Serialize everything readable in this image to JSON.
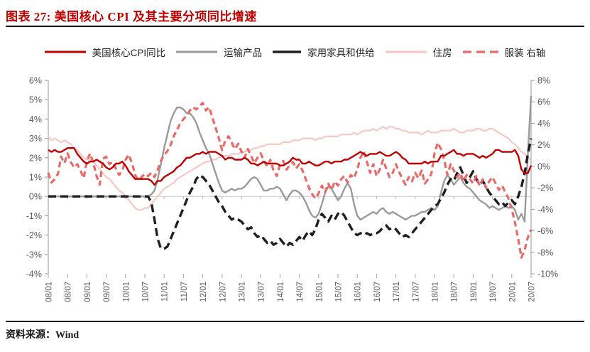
{
  "title": "图表 27:  美国核心 CPI 及其主要分项同比增速",
  "source": "资料来源：Wind",
  "legend": {
    "items": [
      {
        "label": "美国核心CPI同比"
      },
      {
        "label": "运输产品"
      },
      {
        "label": "家用家具和供给"
      },
      {
        "label": "住房"
      },
      {
        "label": "服装 右轴"
      }
    ]
  },
  "chart_data": {
    "type": "line",
    "title": "美国核心 CPI 及其主要分项同比增速",
    "x_labels": [
      "08/01",
      "08/07",
      "09/01",
      "09/07",
      "10/01",
      "10/07",
      "11/01",
      "11/07",
      "12/01",
      "12/07",
      "13/01",
      "13/07",
      "14/01",
      "14/07",
      "15/01",
      "15/07",
      "16/01",
      "16/07",
      "17/01",
      "17/07",
      "18/01",
      "18/07",
      "19/01",
      "19/07",
      "20/01",
      "20/07"
    ],
    "x_start": "2008-01",
    "x_end": "2020-07",
    "x_frequency": "monthly",
    "grid": "zero-line-only",
    "legend_position": "top",
    "left_axis": {
      "max": 6,
      "min": -4,
      "step": 1,
      "labels": [
        "6%",
        "5%",
        "4%",
        "3%",
        "2%",
        "1%",
        "0%",
        "-1%",
        "-2%",
        "-3%",
        "-4%"
      ]
    },
    "right_axis": {
      "max": 8,
      "min": -10,
      "step": 2,
      "labels": [
        "8%",
        "6%",
        "4%",
        "2%",
        "0%",
        "-2%",
        "-4%",
        "-6%",
        "-8%",
        "-10%"
      ]
    },
    "series": [
      {
        "name": "美国核心CPI同比",
        "axis": "left",
        "color": "#c00000",
        "style": "solid",
        "width": 2.4,
        "sample_width": 58,
        "values": [
          2.4,
          2.3,
          2.4,
          2.3,
          2.3,
          2.4,
          2.5,
          2.5,
          2.5,
          2.2,
          2.0,
          1.8,
          1.7,
          1.8,
          1.8,
          1.9,
          1.8,
          1.7,
          1.5,
          1.4,
          1.5,
          1.7,
          1.7,
          1.8,
          1.6,
          1.3,
          1.1,
          0.9,
          0.9,
          0.9,
          0.9,
          0.9,
          0.8,
          0.6,
          0.8,
          0.8,
          1.0,
          1.1,
          1.2,
          1.3,
          1.5,
          1.6,
          1.8,
          2.0,
          2.0,
          2.1,
          2.2,
          2.2,
          2.3,
          2.2,
          2.3,
          2.3,
          2.3,
          2.2,
          2.1,
          1.9,
          2.0,
          2.0,
          1.9,
          1.9,
          1.9,
          2.0,
          1.9,
          1.7,
          1.7,
          1.6,
          1.7,
          1.8,
          1.7,
          1.7,
          1.7,
          1.7,
          1.6,
          1.6,
          1.7,
          1.8,
          2.0,
          1.9,
          1.9,
          1.7,
          1.7,
          1.8,
          1.7,
          1.6,
          1.6,
          1.7,
          1.8,
          1.8,
          1.7,
          1.8,
          1.8,
          1.8,
          1.9,
          1.9,
          2.0,
          2.1,
          2.2,
          2.3,
          2.2,
          2.1,
          2.2,
          2.2,
          2.2,
          2.3,
          2.2,
          2.1,
          2.1,
          2.2,
          2.3,
          2.2,
          2.0,
          1.9,
          1.7,
          1.7,
          1.7,
          1.7,
          1.7,
          1.8,
          1.7,
          1.8,
          1.8,
          1.8,
          2.1,
          2.1,
          2.2,
          2.3,
          2.4,
          2.2,
          2.2,
          2.1,
          2.2,
          2.2,
          2.2,
          2.1,
          2.0,
          2.1,
          2.0,
          2.1,
          2.2,
          2.4,
          2.4,
          2.3,
          2.3,
          2.3,
          2.3,
          2.4,
          2.1,
          1.4,
          1.2,
          1.2,
          1.6
        ]
      },
      {
        "name": "运输产品",
        "axis": "left",
        "color": "#9a9a9a",
        "style": "solid",
        "width": 2.4,
        "sample_width": 58,
        "values": [
          0,
          0,
          0,
          0,
          0,
          0,
          0,
          0,
          0,
          0,
          0,
          0,
          0,
          0,
          0,
          0,
          0,
          0,
          0,
          0,
          0,
          0,
          0,
          0,
          0,
          0,
          0,
          0,
          0,
          0,
          0,
          0,
          0.1,
          0.3,
          0.9,
          1.7,
          2.5,
          3.2,
          3.9,
          4.3,
          4.6,
          4.6,
          4.5,
          4.3,
          4.3,
          4.1,
          3.8,
          3.3,
          2.9,
          2.5,
          2.2,
          1.7,
          1.2,
          0.7,
          0.3,
          0.2,
          0.3,
          0.4,
          0.3,
          0.4,
          0.4,
          0.5,
          0.7,
          0.9,
          1.0,
          0.9,
          0.6,
          0.3,
          0.3,
          0.4,
          0.4,
          0.5,
          0.4,
          0.1,
          -0.2,
          0.1,
          0.3,
          0.3,
          0.2,
          0.0,
          -0.3,
          -0.7,
          -1.0,
          -1.1,
          -0.9,
          -0.4,
          0.2,
          0.5,
          0.4,
          0.1,
          -0.2,
          0.0,
          0.4,
          0.7,
          0.4,
          -0.4,
          -1.0,
          -1.2,
          -1.1,
          -1.0,
          -0.9,
          -0.8,
          -0.9,
          -0.7,
          -0.6,
          -0.8,
          -0.9,
          -0.8,
          -0.9,
          -1.0,
          -1.1,
          -1.2,
          -1.1,
          -1.0,
          -1.0,
          -0.9,
          -0.8,
          -0.8,
          -0.7,
          -0.6,
          -0.7,
          -0.5,
          0.2,
          0.8,
          1.1,
          0.9,
          0.6,
          0.8,
          1.0,
          0.7,
          0.5,
          0.4,
          0.2,
          0.0,
          -0.2,
          -0.3,
          -0.4,
          -0.6,
          -0.5,
          -0.6,
          -0.7,
          -0.6,
          -0.5,
          -0.6,
          -0.5,
          -0.7,
          -1.2,
          -0.9,
          -1.3,
          2.2,
          5.2
        ]
      },
      {
        "name": "家用家具和供给",
        "axis": "left",
        "color": "#1f1f1f",
        "style": "dashed",
        "dash": "11 6",
        "width": 3.4,
        "sample_width": 40,
        "values": [
          0,
          0,
          0,
          0,
          0,
          0,
          0,
          0,
          0,
          0,
          0,
          0,
          0,
          0,
          0,
          0,
          0,
          0,
          0,
          0,
          0,
          0,
          0,
          0,
          0,
          0,
          0,
          0,
          0,
          0,
          0,
          0,
          -0.3,
          -1.2,
          -2.2,
          -2.7,
          -2.7,
          -2.6,
          -2.2,
          -1.8,
          -1.4,
          -1.0,
          -0.6,
          -0.2,
          0.2,
          0.5,
          0.9,
          1.1,
          1.0,
          0.8,
          0.6,
          0.3,
          0.0,
          -0.3,
          -0.5,
          -0.8,
          -1.0,
          -1.2,
          -1.1,
          -1.2,
          -1.3,
          -1.5,
          -1.7,
          -1.6,
          -1.9,
          -2.1,
          -2.0,
          -2.2,
          -2.4,
          -2.3,
          -2.5,
          -2.4,
          -2.2,
          -2.4,
          -2.6,
          -2.4,
          -2.5,
          -2.3,
          -2.1,
          -2.3,
          -2.0,
          -1.8,
          -2.0,
          -1.7,
          -1.2,
          -0.9,
          -1.1,
          -1.3,
          -1.0,
          -1.2,
          -0.9,
          -0.8,
          -1.0,
          -1.3,
          -1.6,
          -1.9,
          -2.0,
          -1.9,
          -2.0,
          -1.9,
          -2.0,
          -1.9,
          -1.9,
          -1.8,
          -1.6,
          -1.5,
          -1.7,
          -1.6,
          -1.7,
          -1.9,
          -2.1,
          -2.0,
          -2.1,
          -1.9,
          -1.7,
          -1.5,
          -1.3,
          -1.1,
          -0.9,
          -0.7,
          -0.5,
          -0.4,
          -0.1,
          0.2,
          0.6,
          0.9,
          0.8,
          1.2,
          1.5,
          1.1,
          0.7,
          1.0,
          1.3,
          0.9,
          0.6,
          0.8,
          0.5,
          0.2,
          0.0,
          -0.2,
          -0.4,
          -0.3,
          -0.5,
          -0.3,
          -0.2,
          -0.4,
          0.0,
          0.5,
          1.2,
          2.2,
          3.0
        ]
      },
      {
        "name": "住房",
        "axis": "left",
        "color": "#f7c7c5",
        "style": "solid",
        "width": 2.2,
        "sample_width": 58,
        "values": [
          3.1,
          2.9,
          3.0,
          2.9,
          2.8,
          2.9,
          2.8,
          2.7,
          2.5,
          2.4,
          2.2,
          2.0,
          1.9,
          1.9,
          1.8,
          1.6,
          1.4,
          1.2,
          1.0,
          0.9,
          0.7,
          0.5,
          0.3,
          0.2,
          0.0,
          -0.2,
          -0.4,
          -0.6,
          -0.7,
          -0.7,
          -0.6,
          -0.6,
          -0.4,
          -0.2,
          0.0,
          0.2,
          0.4,
          0.5,
          0.6,
          0.7,
          0.9,
          1.0,
          1.1,
          1.2,
          1.3,
          1.4,
          1.5,
          1.6,
          1.7,
          1.8,
          1.8,
          1.9,
          1.9,
          2.0,
          2.1,
          2.1,
          2.1,
          2.2,
          2.2,
          2.2,
          2.3,
          2.3,
          2.4,
          2.4,
          2.5,
          2.5,
          2.6,
          2.6,
          2.7,
          2.7,
          2.7,
          2.7,
          2.7,
          2.8,
          2.8,
          2.8,
          2.9,
          2.9,
          2.9,
          3.0,
          3.0,
          3.0,
          3.0,
          2.9,
          3.0,
          3.0,
          3.1,
          3.1,
          3.1,
          3.1,
          3.1,
          3.2,
          3.2,
          3.2,
          3.2,
          3.3,
          3.2,
          3.3,
          3.4,
          3.4,
          3.4,
          3.5,
          3.4,
          3.5,
          3.6,
          3.5,
          3.6,
          3.6,
          3.5,
          3.5,
          3.4,
          3.4,
          3.3,
          3.3,
          3.3,
          3.3,
          3.2,
          3.3,
          3.4,
          3.3,
          3.3,
          3.3,
          3.4,
          3.4,
          3.4,
          3.4,
          3.5,
          3.4,
          3.3,
          3.3,
          3.4,
          3.4,
          3.4,
          3.5,
          3.5,
          3.4,
          3.4,
          3.5,
          3.5,
          3.4,
          3.3,
          3.2,
          3.1,
          3.0,
          2.8,
          2.7,
          2.5,
          2.3,
          2.2,
          2.0,
          1.9
        ]
      },
      {
        "name": "服装 右轴",
        "axis": "right",
        "color": "#e96a67",
        "style": "dashed",
        "dash": "8 5",
        "width": 3.2,
        "sample_width": 50,
        "values": [
          -0.6,
          -1.5,
          -1.2,
          -0.7,
          0.9,
          0.3,
          1.2,
          0.4,
          -0.1,
          0.2,
          -0.4,
          -1.1,
          0.5,
          1.2,
          0.3,
          -0.9,
          -1.7,
          0.7,
          0.9,
          0.2,
          0.4,
          -0.2,
          -0.8,
          -0.4,
          0.6,
          1.1,
          0.3,
          -0.8,
          -1.3,
          -1.0,
          -0.7,
          -0.9,
          -0.6,
          -1.0,
          -0.3,
          0.5,
          1.1,
          1.4,
          2.0,
          2.8,
          3.4,
          4.0,
          4.4,
          4.7,
          5.2,
          5.5,
          5.3,
          5.6,
          5.9,
          5.2,
          5.5,
          4.5,
          3.6,
          2.6,
          1.5,
          2.4,
          2.8,
          2.2,
          1.6,
          2.1,
          1.4,
          0.8,
          1.6,
          1.0,
          0.3,
          0.8,
          1.2,
          0.5,
          0.0,
          0.6,
          -0.4,
          -0.9,
          0.2,
          0.5,
          -0.3,
          0.1,
          0.4,
          -0.2,
          0.2,
          -0.4,
          -1.2,
          -2.0,
          -2.6,
          -3.0,
          -2.5,
          -1.8,
          -2.4,
          -1.6,
          -2.2,
          -1.4,
          -1.8,
          -1.2,
          -0.9,
          -1.5,
          -0.8,
          -1.1,
          -0.3,
          0.8,
          1.4,
          0.4,
          -0.6,
          0.2,
          -0.9,
          -0.3,
          0.6,
          -0.2,
          -1.0,
          -0.6,
          0.2,
          -0.5,
          -1.2,
          -1.7,
          -1.0,
          -1.4,
          -0.6,
          -1.1,
          -0.4,
          -1.6,
          -1.2,
          -0.7,
          1.2,
          2.2,
          1.6,
          0.6,
          -0.8,
          0.2,
          -0.4,
          -1.0,
          -0.6,
          -1.4,
          -0.8,
          -1.2,
          -1.6,
          -0.9,
          -1.8,
          -1.2,
          -2.0,
          -1.4,
          -1.0,
          -1.6,
          -2.2,
          -1.8,
          -2.4,
          -3.0,
          -4.0,
          -5.2,
          -6.8,
          -8.5,
          -7.8,
          -6.6,
          -5.9
        ]
      }
    ],
    "style_colors": {
      "title_red": "#c00000",
      "axis_text": "#595959",
      "axis_line": "#a6a6a6",
      "zero_gridline": "#c9c9c9",
      "rule_black": "#000000"
    }
  }
}
